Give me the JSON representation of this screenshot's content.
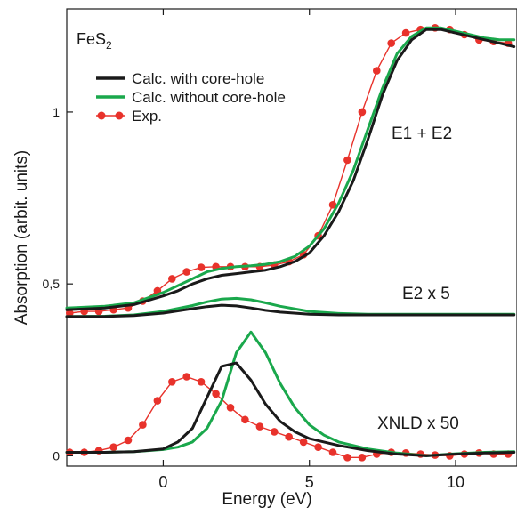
{
  "chart_data": {
    "type": "line",
    "title": "",
    "compound_label": {
      "main": "FeS",
      "subscript": "2"
    },
    "xlabel": "Energy (eV)",
    "ylabel": "Absorption (arbit. units)",
    "xlim": [
      -3.3,
      12.1
    ],
    "ylim": [
      -0.03,
      1.3
    ],
    "x_ticks": [
      0,
      5,
      10
    ],
    "x_tick_labels": [
      "0",
      "5",
      "10"
    ],
    "y_ticks": [
      0,
      0.5,
      1
    ],
    "y_tick_labels": [
      "0",
      "0,5",
      "1"
    ],
    "grid": false,
    "legend_position": "top-left",
    "colors": {
      "with_core_hole": "#1a1a1a",
      "without_core_hole": "#1aa84c",
      "experiment": "#e8322b"
    },
    "legend": [
      {
        "label": "Calc. with core-hole",
        "series_key": "with_core_hole"
      },
      {
        "label": "Calc. without core-hole",
        "series_key": "without_core_hole"
      },
      {
        "label": "Exp.",
        "series_key": "experiment"
      }
    ],
    "annotations": [
      "E1 + E2",
      "E2 x 5",
      "XNLD x 50"
    ],
    "panels": [
      {
        "label": "E1 + E2",
        "series": [
          {
            "key": "with_core_hole",
            "style": "line",
            "x": [
              -3.3,
              -2,
              -1,
              0,
              0.5,
              1,
              1.5,
              2,
              2.5,
              3,
              3.5,
              4,
              4.5,
              5,
              5.5,
              6,
              6.5,
              7,
              7.5,
              8,
              8.5,
              9,
              9.5,
              10,
              10.5,
              11,
              11.5,
              12
            ],
            "y": [
              0.425,
              0.43,
              0.44,
              0.465,
              0.48,
              0.5,
              0.515,
              0.525,
              0.53,
              0.535,
              0.54,
              0.55,
              0.565,
              0.59,
              0.64,
              0.71,
              0.8,
              0.92,
              1.05,
              1.15,
              1.21,
              1.24,
              1.24,
              1.23,
              1.22,
              1.21,
              1.2,
              1.19
            ]
          },
          {
            "key": "without_core_hole",
            "style": "line",
            "x": [
              -3.3,
              -2,
              -1,
              0,
              0.5,
              1,
              1.5,
              2,
              2.5,
              3,
              3.5,
              4,
              4.5,
              5,
              5.5,
              6,
              6.5,
              7,
              7.5,
              8,
              8.5,
              9,
              9.5,
              10,
              10.5,
              11,
              11.5,
              12
            ],
            "y": [
              0.43,
              0.435,
              0.445,
              0.475,
              0.495,
              0.515,
              0.535,
              0.545,
              0.55,
              0.553,
              0.557,
              0.565,
              0.58,
              0.61,
              0.66,
              0.735,
              0.83,
              0.95,
              1.07,
              1.17,
              1.22,
              1.245,
              1.245,
              1.235,
              1.225,
              1.215,
              1.21,
              1.21
            ]
          },
          {
            "key": "experiment",
            "style": "line-markers",
            "x": [
              -3.2,
              -2.7,
              -2.2,
              -1.7,
              -1.2,
              -0.7,
              -0.2,
              0.3,
              0.8,
              1.3,
              1.8,
              2.3,
              2.8,
              3.3,
              3.8,
              4.3,
              4.8,
              5.3,
              5.8,
              6.3,
              6.8,
              7.3,
              7.8,
              8.3,
              8.8,
              9.3,
              9.8,
              10.3,
              10.8,
              11.3,
              11.8
            ],
            "y": [
              0.415,
              0.42,
              0.42,
              0.425,
              0.43,
              0.45,
              0.48,
              0.515,
              0.535,
              0.548,
              0.55,
              0.55,
              0.55,
              0.55,
              0.555,
              0.565,
              0.585,
              0.64,
              0.73,
              0.86,
              1.0,
              1.12,
              1.2,
              1.23,
              1.24,
              1.245,
              1.24,
              1.225,
              1.21,
              1.205,
              1.2
            ]
          }
        ]
      },
      {
        "label": "E2 x 5",
        "series": [
          {
            "key": "with_core_hole",
            "style": "line",
            "x": [
              -3.3,
              -2,
              -1,
              0,
              1,
              1.5,
              2,
              2.5,
              3,
              3.5,
              4,
              5,
              6,
              7,
              8,
              9,
              10,
              11,
              12
            ],
            "y": [
              0.405,
              0.405,
              0.408,
              0.415,
              0.428,
              0.434,
              0.438,
              0.436,
              0.43,
              0.423,
              0.418,
              0.412,
              0.41,
              0.41,
              0.41,
              0.41,
              0.41,
              0.41,
              0.41
            ]
          },
          {
            "key": "without_core_hole",
            "style": "line",
            "x": [
              -3.3,
              -2,
              -1,
              0,
              1,
              1.5,
              2,
              2.5,
              3,
              3.5,
              4,
              5,
              6,
              7,
              8,
              9,
              10,
              11,
              12
            ],
            "y": [
              0.405,
              0.406,
              0.41,
              0.42,
              0.437,
              0.448,
              0.456,
              0.458,
              0.454,
              0.445,
              0.435,
              0.42,
              0.414,
              0.412,
              0.412,
              0.412,
              0.412,
              0.412,
              0.412
            ]
          }
        ]
      },
      {
        "label": "XNLD x 50",
        "series": [
          {
            "key": "with_core_hole",
            "style": "line",
            "x": [
              -3.3,
              -2,
              -1,
              0,
              0.5,
              1,
              1.5,
              2,
              2.5,
              3,
              3.5,
              4,
              4.5,
              5,
              5.5,
              6,
              7,
              8,
              9,
              10,
              11,
              12
            ],
            "y": [
              0.01,
              0.01,
              0.012,
              0.02,
              0.04,
              0.08,
              0.17,
              0.26,
              0.27,
              0.22,
              0.15,
              0.1,
              0.07,
              0.05,
              0.04,
              0.03,
              0.015,
              0.005,
              0.0,
              0.005,
              0.008,
              0.01
            ]
          },
          {
            "key": "without_core_hole",
            "style": "line",
            "x": [
              -3.3,
              -2,
              -1,
              0,
              0.5,
              1,
              1.5,
              2,
              2.5,
              3,
              3.5,
              4,
              4.5,
              5,
              5.5,
              6,
              7,
              8,
              9,
              10,
              11,
              12
            ],
            "y": [
              0.01,
              0.01,
              0.012,
              0.018,
              0.025,
              0.04,
              0.08,
              0.16,
              0.3,
              0.36,
              0.3,
              0.21,
              0.14,
              0.09,
              0.06,
              0.04,
              0.02,
              0.008,
              0.0,
              0.006,
              0.01,
              0.012
            ]
          },
          {
            "key": "experiment",
            "style": "line-markers",
            "x": [
              -3.2,
              -2.7,
              -2.2,
              -1.7,
              -1.2,
              -0.7,
              -0.2,
              0.3,
              0.8,
              1.3,
              1.8,
              2.3,
              2.8,
              3.3,
              3.8,
              4.3,
              4.8,
              5.3,
              5.8,
              6.3,
              6.8,
              7.3,
              7.8,
              8.3,
              8.8,
              9.3,
              9.8,
              10.3,
              10.8,
              11.3,
              11.8
            ],
            "y": [
              0.01,
              0.01,
              0.015,
              0.025,
              0.045,
              0.09,
              0.16,
              0.215,
              0.23,
              0.215,
              0.18,
              0.14,
              0.105,
              0.085,
              0.07,
              0.055,
              0.04,
              0.025,
              0.01,
              -0.005,
              -0.005,
              0.005,
              0.01,
              0.008,
              0.005,
              0.002,
              0.0,
              0.005,
              0.008,
              0.005,
              0.005
            ]
          }
        ]
      }
    ]
  }
}
